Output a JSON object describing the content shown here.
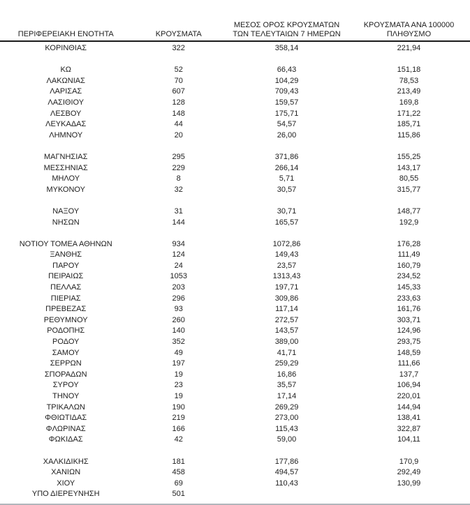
{
  "colors": {
    "text": "#212121",
    "header_rule": "#1a1a1a",
    "bottom_rule": "#b0b6bb",
    "background": "#ffffff"
  },
  "table": {
    "header": {
      "col1": "ΠΕΡΙΦΕΡΕΙΑΚΗ ΕΝΟΤΗΤΑ",
      "col2": "ΚΡΟΥΣΜΑΤΑ",
      "col3_line1": "ΜΕΣΟΣ ΟΡΟΣ ΚΡΟΥΣΜΑΤΩΝ",
      "col3_line2": "ΤΩΝ ΤΕΛΕΥΤΑΙΩΝ 7 ΗΜΕΡΩΝ",
      "col4_line1": "ΚΡΟΥΣΜΑΤΑ ΑΝΑ 100000",
      "col4_line2": "ΠΛΗΘΥΣΜΟ"
    },
    "sections": [
      [
        {
          "name": "ΚΟΡΙΝΘΙΑΣ",
          "cases": "322",
          "avg7": "358,14",
          "per100k": "221,94"
        }
      ],
      [
        {
          "name": "ΚΩ",
          "cases": "52",
          "avg7": "66,43",
          "per100k": "151,18"
        },
        {
          "name": "ΛΑΚΩΝΙΑΣ",
          "cases": "70",
          "avg7": "104,29",
          "per100k": "78,53"
        },
        {
          "name": "ΛΑΡΙΣΑΣ",
          "cases": "607",
          "avg7": "709,43",
          "per100k": "213,49"
        },
        {
          "name": "ΛΑΣΙΘΙΟΥ",
          "cases": "128",
          "avg7": "159,57",
          "per100k": "169,8"
        },
        {
          "name": "ΛΕΣΒΟΥ",
          "cases": "148",
          "avg7": "175,71",
          "per100k": "171,22"
        },
        {
          "name": "ΛΕΥΚΑΔΑΣ",
          "cases": "44",
          "avg7": "54,57",
          "per100k": "185,71"
        },
        {
          "name": "ΛΗΜΝΟΥ",
          "cases": "20",
          "avg7": "26,00",
          "per100k": "115,86"
        }
      ],
      [
        {
          "name": "ΜΑΓΝΗΣΙΑΣ",
          "cases": "295",
          "avg7": "371,86",
          "per100k": "155,25"
        },
        {
          "name": "ΜΕΣΣΗΝΙΑΣ",
          "cases": "229",
          "avg7": "266,14",
          "per100k": "143,17"
        },
        {
          "name": "ΜΗΛΟΥ",
          "cases": "8",
          "avg7": "5,71",
          "per100k": "80,55"
        },
        {
          "name": "ΜΥΚΟΝΟΥ",
          "cases": "32",
          "avg7": "30,57",
          "per100k": "315,77"
        }
      ],
      [
        {
          "name": "ΝΑΞΟΥ",
          "cases": "31",
          "avg7": "30,71",
          "per100k": "148,77"
        },
        {
          "name": "ΝΗΣΩΝ",
          "cases": "144",
          "avg7": "165,57",
          "per100k": "192,9"
        }
      ],
      [
        {
          "name": "ΝΟΤΙΟΥ ΤΟΜΕΑ ΑΘΗΝΩΝ",
          "cases": "934",
          "avg7": "1072,86",
          "per100k": "176,28"
        },
        {
          "name": "ΞΑΝΘΗΣ",
          "cases": "124",
          "avg7": "149,43",
          "per100k": "111,49"
        },
        {
          "name": "ΠΑΡΟΥ",
          "cases": "24",
          "avg7": "23,57",
          "per100k": "160,79"
        },
        {
          "name": "ΠΕΙΡΑΙΩΣ",
          "cases": "1053",
          "avg7": "1313,43",
          "per100k": "234,52"
        },
        {
          "name": "ΠΕΛΛΑΣ",
          "cases": "203",
          "avg7": "197,71",
          "per100k": "145,33"
        },
        {
          "name": "ΠΙΕΡΙΑΣ",
          "cases": "296",
          "avg7": "309,86",
          "per100k": "233,63"
        },
        {
          "name": "ΠΡΕΒΕΖΑΣ",
          "cases": "93",
          "avg7": "117,14",
          "per100k": "161,76"
        },
        {
          "name": "ΡΕΘΥΜΝΟΥ",
          "cases": "260",
          "avg7": "272,57",
          "per100k": "303,71"
        },
        {
          "name": "ΡΟΔΟΠΗΣ",
          "cases": "140",
          "avg7": "143,57",
          "per100k": "124,96"
        },
        {
          "name": "ΡΟΔΟΥ",
          "cases": "352",
          "avg7": "389,00",
          "per100k": "293,75"
        },
        {
          "name": "ΣΑΜΟΥ",
          "cases": "49",
          "avg7": "41,71",
          "per100k": "148,59"
        },
        {
          "name": "ΣΕΡΡΩΝ",
          "cases": "197",
          "avg7": "259,29",
          "per100k": "111,66"
        },
        {
          "name": "ΣΠΟΡΑΔΩΝ",
          "cases": "19",
          "avg7": "16,86",
          "per100k": "137,7"
        },
        {
          "name": "ΣΥΡΟΥ",
          "cases": "23",
          "avg7": "35,57",
          "per100k": "106,94"
        },
        {
          "name": "ΤΗΝΟΥ",
          "cases": "19",
          "avg7": "17,14",
          "per100k": "220,01"
        },
        {
          "name": "ΤΡΙΚΑΛΩΝ",
          "cases": "190",
          "avg7": "269,29",
          "per100k": "144,94"
        },
        {
          "name": "ΦΘΙΩΤΙΔΑΣ",
          "cases": "219",
          "avg7": "273,00",
          "per100k": "138,41"
        },
        {
          "name": "ΦΛΩΡΙΝΑΣ",
          "cases": "166",
          "avg7": "115,43",
          "per100k": "322,87"
        },
        {
          "name": "ΦΩΚΙΔΑΣ",
          "cases": "42",
          "avg7": "59,00",
          "per100k": "104,11"
        }
      ],
      [
        {
          "name": "ΧΑΛΚΙΔΙΚΗΣ",
          "cases": "181",
          "avg7": "177,86",
          "per100k": "170,9"
        },
        {
          "name": "ΧΑΝΙΩΝ",
          "cases": "458",
          "avg7": "494,57",
          "per100k": "292,49"
        },
        {
          "name": "ΧΙΟΥ",
          "cases": "69",
          "avg7": "110,43",
          "per100k": "130,99"
        },
        {
          "name": "ΥΠΟ ΔΙΕΡΕΥΝΗΣΗ",
          "cases": "501",
          "avg7": "",
          "per100k": ""
        }
      ]
    ]
  }
}
